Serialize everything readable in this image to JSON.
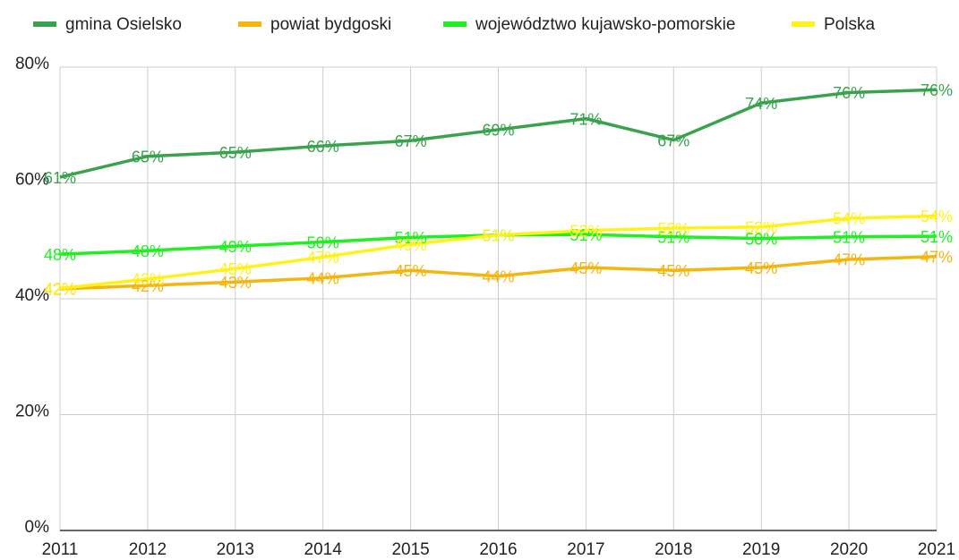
{
  "chart_data": {
    "type": "line",
    "categories": [
      "2011",
      "2012",
      "2013",
      "2014",
      "2015",
      "2016",
      "2017",
      "2018",
      "2019",
      "2020",
      "2021"
    ],
    "series": [
      {
        "name": "gmina Osielsko",
        "color": "#38a34c",
        "values": [
          61,
          64.6,
          65.3,
          66.4,
          67.3,
          69.2,
          71.1,
          67.4,
          73.8,
          75.6,
          76.1
        ],
        "value_labels": [
          "61%",
          "65%",
          "65%",
          "66%",
          "67%",
          "69%",
          "71%",
          "67%",
          "74%",
          "76%",
          "76%"
        ]
      },
      {
        "name": "powiat bydgoski",
        "color": "#f5b50f",
        "values": [
          41.7,
          42.3,
          42.9,
          43.6,
          44.9,
          43.9,
          45.4,
          44.9,
          45.4,
          46.8,
          47.3
        ],
        "value_labels": [
          "42%",
          "42%",
          "43%",
          "44%",
          "45%",
          "44%",
          "45%",
          "45%",
          "45%",
          "47%",
          "47%"
        ]
      },
      {
        "name": "województwo kujawsko-pomorskie",
        "color": "#1ef21e",
        "values": [
          47.7,
          48.3,
          49.1,
          49.8,
          50.6,
          51.0,
          51.1,
          50.7,
          50.4,
          50.7,
          50.8
        ],
        "value_labels": [
          "48%",
          "48%",
          "49%",
          "50%",
          "51%",
          "51%",
          "51%",
          "51%",
          "50%",
          "51%",
          "51%"
        ]
      },
      {
        "name": "Polska",
        "color": "#fff21a",
        "values": [
          41.8,
          43.4,
          45.2,
          47.2,
          49.4,
          51.0,
          51.8,
          52.2,
          52.4,
          53.9,
          54.3
        ],
        "value_labels": [
          "42%",
          "43%",
          "45%",
          "47%",
          "49%",
          "51%",
          "52%",
          "52%",
          "52%",
          "54%",
          "54%"
        ]
      }
    ],
    "ylim": [
      0,
      80
    ],
    "yticks": [
      {
        "value": 0,
        "label": "0%"
      },
      {
        "value": 20,
        "label": "20%"
      },
      {
        "value": 40,
        "label": "40%"
      },
      {
        "value": 60,
        "label": "60%"
      },
      {
        "value": 80,
        "label": "80%"
      }
    ],
    "grid": true
  }
}
